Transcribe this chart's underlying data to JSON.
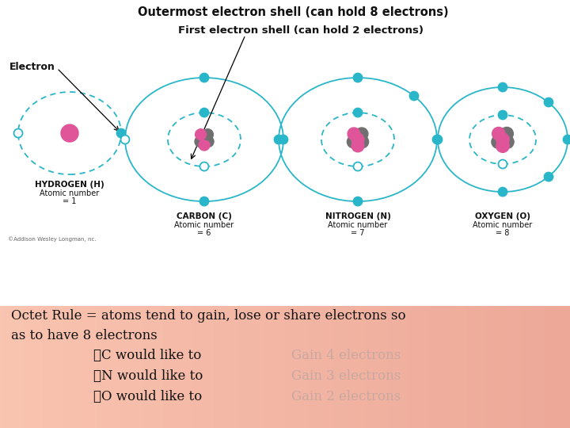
{
  "top_image_bg": "#ffffff",
  "bottom_bg_color": "#f0a090",
  "title_outermost": "Outermost electron shell (can hold 8 electrons)",
  "title_first": "First electron shell (can hold 2 electrons)",
  "label_electron": "Electron",
  "atoms": [
    {
      "name": "HYDROGEN (H)",
      "an_label": "Atomic number",
      "an_val": "= 1"
    },
    {
      "name": "CARBON (C)",
      "an_label": "Atomic number",
      "an_val": "= 6"
    },
    {
      "name": "NITROGEN (N)",
      "an_label": "Atomic number",
      "an_val": "= 7"
    },
    {
      "name": "OXYGEN (O)",
      "an_label": "Atomic number",
      "an_val": "= 8"
    }
  ],
  "copyright": "©Addison Wesley Longman, nc.",
  "octet_line1": "Octet Rule = atoms tend to gain, lose or share electrons so",
  "octet_line2": "as to have 8 electrons",
  "bullet_left": [
    "✓C would like to",
    "✓N would like to",
    "✓O would like to"
  ],
  "bullet_right": [
    "Gain 4 electrons",
    "Gain 3 electrons",
    "Gain 2 electrons"
  ],
  "electron_color": "#29b6c8",
  "electron_empty_ec": "#29b6c8",
  "nucleus_pink": "#e0559a",
  "nucleus_gray": "#707070",
  "text_color_dark": "#111111",
  "text_color_gain": "#c8a8a0",
  "orbit_color": "#29b6c8"
}
